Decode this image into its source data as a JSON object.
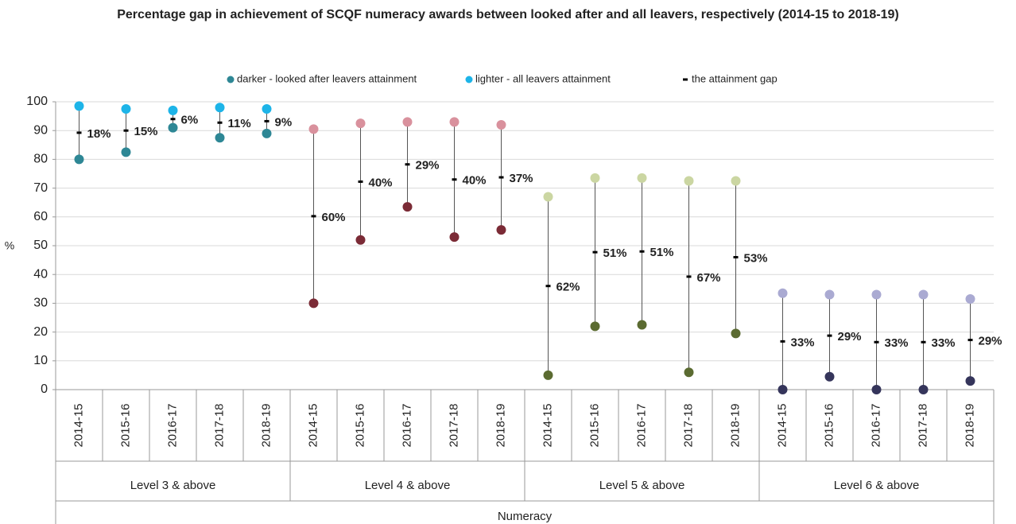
{
  "chart_data": {
    "type": "dot-range",
    "title": "Percentage gap in achievement of SCQF numeracy awards between looked after and all leavers, respectively (2014-15 to 2018-19)",
    "y_label": "%",
    "x_group_label": "Numeracy",
    "groups": [
      {
        "name": "Level 3 & above",
        "categories": [
          "2014-15",
          "2015-16",
          "2016-17",
          "2017-18",
          "2018-19"
        ],
        "darker_color": "#2e8795",
        "lighter_color": "#1db4e8"
      },
      {
        "name": "Level 4 & above",
        "categories": [
          "2014-15",
          "2015-16",
          "2016-17",
          "2017-18",
          "2018-19"
        ],
        "darker_color": "#7b2b36",
        "lighter_color": "#d9919d"
      },
      {
        "name": "Level 5 & above",
        "categories": [
          "2014-15",
          "2015-16",
          "2016-17",
          "2017-18",
          "2018-19"
        ],
        "darker_color": "#5b6b31",
        "lighter_color": "#cbd6a2"
      },
      {
        "name": "Level 6 & above",
        "categories": [
          "2014-15",
          "2015-16",
          "2016-17",
          "2017-18",
          "2018-19"
        ],
        "darker_color": "#35355b",
        "lighter_color": "#aaaad2"
      }
    ],
    "series": [
      {
        "name": "darker - looked after leavers attainment",
        "color": "#2e8795",
        "values": [
          80,
          82.5,
          91,
          87.5,
          89,
          30,
          52,
          63.5,
          53,
          55.5,
          5,
          22,
          22.5,
          6,
          19.5,
          0,
          4.5,
          0,
          0,
          3
        ]
      },
      {
        "name": "lighter - all leavers attainment",
        "color": "#1db4e8",
        "values": [
          98.5,
          97.5,
          97,
          98,
          97.5,
          90.5,
          92.5,
          93,
          93,
          92,
          67,
          73.5,
          73.5,
          72.5,
          72.5,
          33.5,
          33,
          33,
          33,
          31.5
        ]
      },
      {
        "name": "the attainment gap",
        "color": "#000000",
        "values": [
          18,
          15,
          6,
          11,
          9,
          60,
          40,
          29,
          40,
          37,
          62,
          51,
          51,
          67,
          53,
          33,
          29,
          33,
          33,
          29
        ],
        "value_labels": [
          "18%",
          "15%",
          "6%",
          "11%",
          "9%",
          "60%",
          "40%",
          "29%",
          "40%",
          "37%",
          "62%",
          "51%",
          "51%",
          "67%",
          "53%",
          "33%",
          "29%",
          "33%",
          "33%",
          "29%"
        ]
      }
    ],
    "ylim": [
      0,
      100
    ],
    "yticks": [
      0,
      10,
      20,
      30,
      40,
      50,
      60,
      70,
      80,
      90,
      100
    ],
    "grid": true
  }
}
